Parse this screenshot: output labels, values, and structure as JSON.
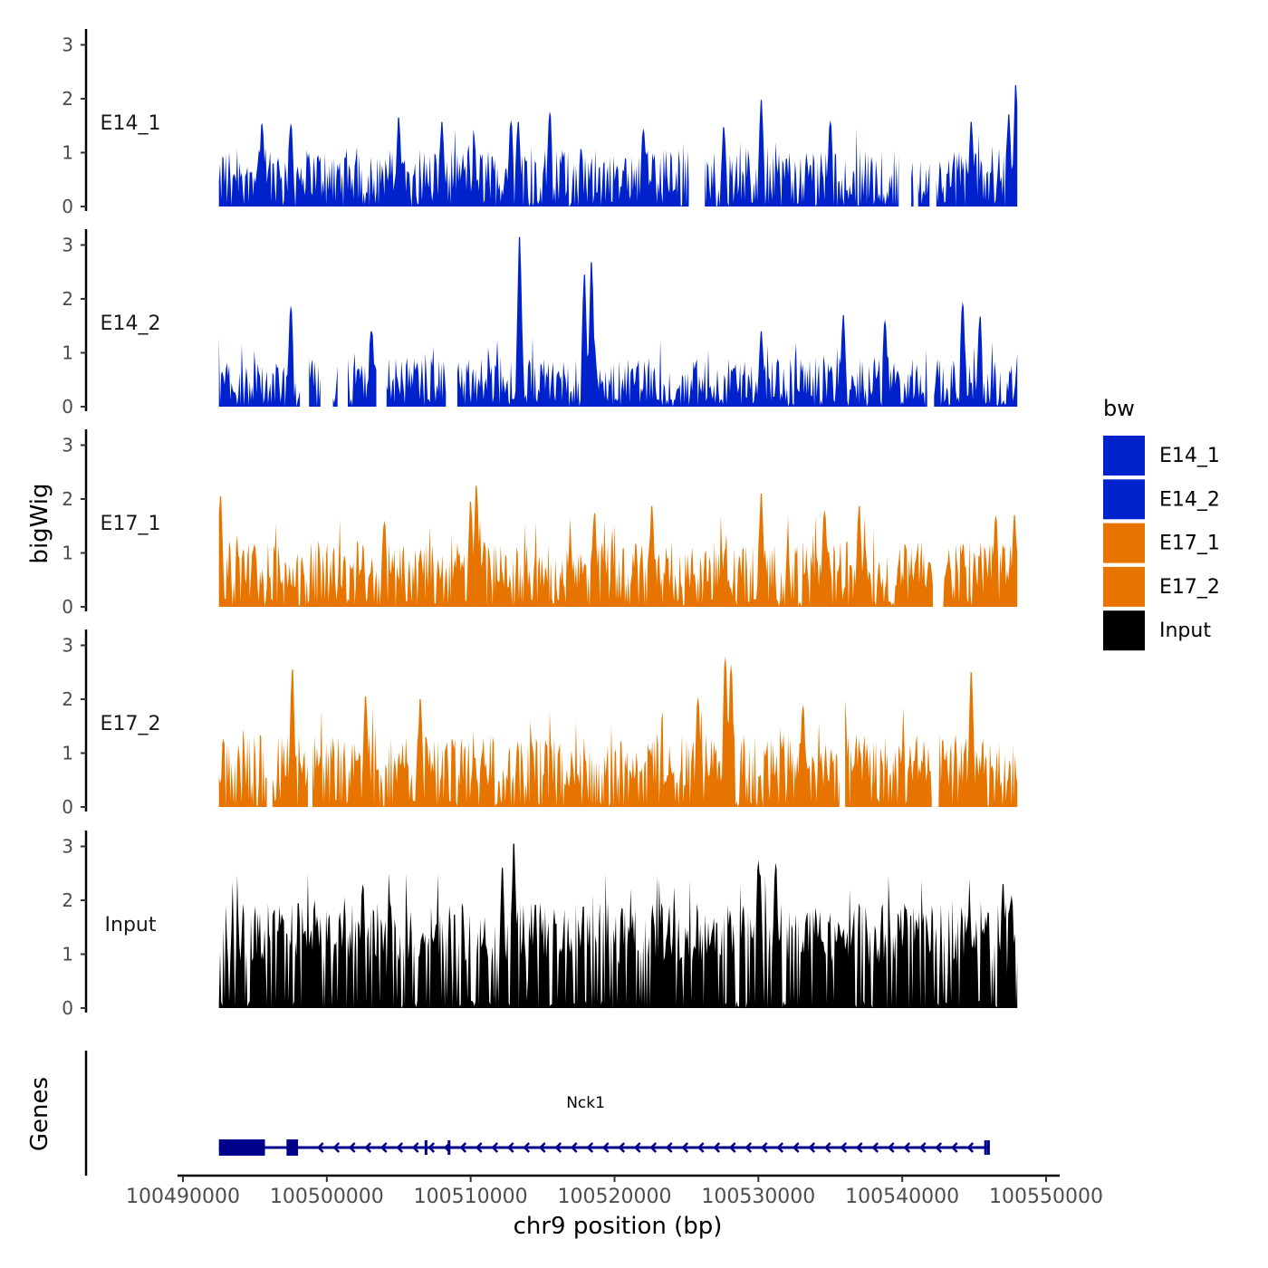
{
  "chart_data": {
    "type": "area",
    "y_axis_title": "bigWig",
    "genes_axis_title": "Genes",
    "x_axis_title": "chr9 position (bp)",
    "x_range": [
      100490000,
      100550000
    ],
    "x_ticks": [
      100490000,
      100500000,
      100510000,
      100520000,
      100530000,
      100540000,
      100550000
    ],
    "x_tick_labels": [
      "100490000",
      "100500000",
      "100510000",
      "100520000",
      "100530000",
      "100540000",
      "100550000"
    ],
    "y_range": [
      0,
      3.2
    ],
    "y_ticks": [
      0,
      1,
      2,
      3
    ],
    "y_tick_labels": [
      "0",
      "1",
      "2",
      "3"
    ],
    "track_region": [
      100492500,
      100548000
    ],
    "legend": {
      "title": "bw",
      "entries": [
        {
          "label": "E14_1",
          "color": "#0022CC"
        },
        {
          "label": "E14_2",
          "color": "#0022CC"
        },
        {
          "label": "E17_1",
          "color": "#E87400"
        },
        {
          "label": "E17_2",
          "color": "#E87400"
        },
        {
          "label": "Input",
          "color": "#000000"
        }
      ]
    },
    "series": [
      {
        "name": "E14_1",
        "color": "#0022CC",
        "mean": 0.5,
        "spread": 0.45,
        "peaks": [
          [
            100495500,
            1.55
          ],
          [
            100497500,
            1.55
          ],
          [
            100505000,
            1.65
          ],
          [
            100508000,
            1.57
          ],
          [
            100512800,
            1.6
          ],
          [
            100513300,
            1.57
          ],
          [
            100515500,
            1.77
          ],
          [
            100522000,
            1.45
          ],
          [
            100527600,
            1.47
          ],
          [
            100530200,
            1.98
          ],
          [
            100535000,
            1.6
          ],
          [
            100544800,
            1.57
          ],
          [
            100547400,
            1.71
          ],
          [
            100547900,
            2.25
          ]
        ],
        "gaps": [
          [
            100525200,
            100526200
          ],
          [
            100539800,
            100540600
          ],
          [
            100540800,
            100541100
          ],
          [
            100541900,
            100542300
          ]
        ]
      },
      {
        "name": "E14_2",
        "color": "#0022CC",
        "mean": 0.4,
        "spread": 0.4,
        "peaks": [
          [
            100497500,
            1.88
          ],
          [
            100503100,
            1.4
          ],
          [
            100513400,
            3.15
          ],
          [
            100517900,
            2.45
          ],
          [
            100518400,
            2.68
          ],
          [
            100530200,
            1.4
          ],
          [
            100535900,
            1.7
          ],
          [
            100538800,
            1.62
          ],
          [
            100544200,
            1.95
          ],
          [
            100545400,
            1.68
          ]
        ],
        "gaps": [
          [
            100498200,
            100498700
          ],
          [
            100499600,
            100500400
          ],
          [
            100500800,
            100501400
          ],
          [
            100503500,
            100504100
          ],
          [
            100508300,
            100509000
          ],
          [
            100541800,
            100542200
          ]
        ]
      },
      {
        "name": "E17_1",
        "color": "#E87400",
        "mean": 0.65,
        "spread": 0.45,
        "peaks": [
          [
            100492600,
            2.05
          ],
          [
            100504000,
            1.6
          ],
          [
            100510000,
            1.95
          ],
          [
            100510400,
            2.25
          ],
          [
            100518600,
            1.75
          ],
          [
            100522600,
            1.87
          ],
          [
            100530200,
            2.1
          ],
          [
            100534600,
            1.8
          ],
          [
            100537000,
            1.87
          ],
          [
            100546500,
            1.7
          ],
          [
            100547800,
            1.7
          ]
        ],
        "gaps": [
          [
            100542200,
            100542800
          ]
        ]
      },
      {
        "name": "E17_2",
        "color": "#E87400",
        "mean": 0.72,
        "spread": 0.5,
        "peaks": [
          [
            100497600,
            2.55
          ],
          [
            100502700,
            2.05
          ],
          [
            100506500,
            2.0
          ],
          [
            100525800,
            2.05
          ],
          [
            100527700,
            2.8
          ],
          [
            100528100,
            2.65
          ],
          [
            100536000,
            2.0
          ],
          [
            100544800,
            2.5
          ],
          [
            100533100,
            1.9
          ]
        ],
        "gaps": [
          [
            100495900,
            100496200
          ],
          [
            100498700,
            100499000
          ],
          [
            100535700,
            100536000
          ],
          [
            100542100,
            100542500
          ]
        ]
      },
      {
        "name": "Input",
        "color": "#000000",
        "mean": 1.25,
        "spread": 0.55,
        "peaks": [
          [
            100502500,
            2.3
          ],
          [
            100512200,
            2.6
          ],
          [
            100513000,
            3.05
          ],
          [
            100530000,
            2.75
          ],
          [
            100531200,
            2.7
          ],
          [
            100547000,
            2.3
          ],
          [
            100547600,
            2.1
          ]
        ],
        "gaps": []
      }
    ],
    "gene": {
      "name": "Nck1",
      "strand": "-",
      "start": 100492500,
      "end": 100546000,
      "exons": [
        [
          100492500,
          100495700
        ],
        [
          100497200,
          100498000
        ],
        [
          100506800,
          100506850
        ],
        [
          100508400,
          100508550
        ],
        [
          100545700,
          100545800
        ],
        [
          100545900,
          100546000
        ]
      ],
      "color": "#00008B"
    }
  }
}
